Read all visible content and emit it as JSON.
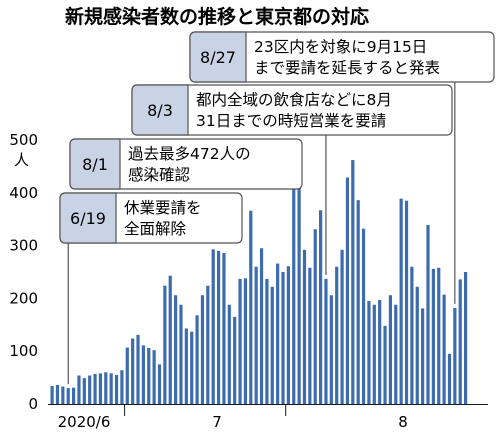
{
  "chart_data": {
    "type": "bar",
    "title": "新規感染者数の推移と東京都の対応",
    "ylabel": "人",
    "ylim": [
      0,
      500
    ],
    "yticks": [
      0,
      100,
      200,
      300,
      400,
      500
    ],
    "x_labels": [
      "2020/6",
      "7",
      "8"
    ],
    "grid": false,
    "bar_color": "#3c6cae",
    "values": [
      34,
      36,
      33,
      30,
      31,
      54,
      49,
      54,
      57,
      58,
      60,
      58,
      55,
      64,
      107,
      124,
      131,
      111,
      106,
      102,
      75,
      224,
      243,
      206,
      188,
      143,
      137,
      168,
      206,
      224,
      293,
      290,
      286,
      188,
      165,
      237,
      238,
      366,
      260,
      295,
      237,
      222,
      266,
      250,
      261,
      463,
      472,
      292,
      258,
      331,
      367,
      237,
      206,
      260,
      292,
      429,
      462,
      386,
      332,
      195,
      188,
      197,
      148,
      206,
      188,
      389,
      385,
      260,
      222,
      181,
      339,
      256,
      258,
      207,
      95,
      182,
      236,
      250
    ],
    "annotations": [
      {
        "date": "8/27",
        "text": [
          "23区内を対象に9月15日",
          "まで要請を延長すると発表"
        ],
        "bar": 75
      },
      {
        "date": "8/3",
        "text": [
          "都内全域の飲食店などに8月",
          "31日までの時短営業を要請"
        ],
        "bar": 51
      },
      {
        "date": "8/1",
        "text": [
          "過去最多472人の",
          "感染確認"
        ],
        "bar": 46
      },
      {
        "date": "6/19",
        "text": [
          "休業要請を",
          "全面解除"
        ],
        "bar": 3
      }
    ]
  }
}
